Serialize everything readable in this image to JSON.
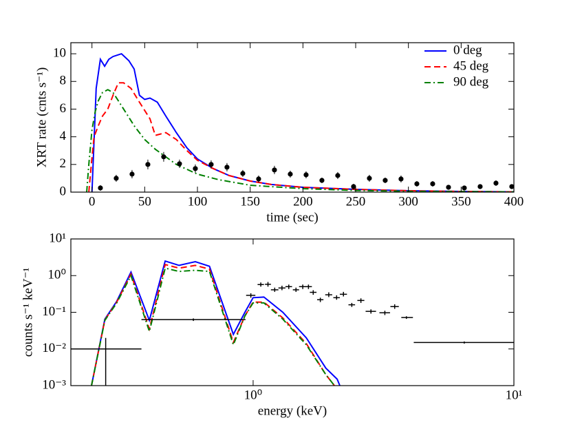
{
  "chart_data": [
    {
      "type": "line",
      "xlabel": "time (sec)",
      "ylabel": "XRT rate (cnts s⁻¹)",
      "xlim": [
        -20,
        400
      ],
      "ylim": [
        0,
        10.8
      ],
      "xticks": [
        0,
        50,
        100,
        150,
        200,
        250,
        300,
        350,
        400
      ],
      "yticks": [
        0,
        2,
        4,
        6,
        8,
        10
      ],
      "legend": "upper right",
      "series": [
        {
          "name": "0 deg",
          "color": "#0000ff",
          "dash": "solid",
          "x": [
            0,
            4,
            8,
            12,
            16,
            20,
            24,
            28,
            35,
            40,
            45,
            50,
            55,
            62,
            70,
            80,
            90,
            100,
            115,
            130,
            150,
            170,
            200,
            250,
            300,
            350,
            400
          ],
          "values": [
            0,
            7.5,
            9.6,
            9.1,
            9.6,
            9.8,
            9.9,
            10,
            9.5,
            8.9,
            7.0,
            6.7,
            6.8,
            6.5,
            5.5,
            4.3,
            3.2,
            2.4,
            1.7,
            1.2,
            0.8,
            0.55,
            0.35,
            0.2,
            0.1,
            0.05,
            0.02
          ]
        },
        {
          "name": "45 deg",
          "color": "#ff0000",
          "dash": "dashed",
          "x": [
            -3,
            0,
            2,
            6,
            10,
            15,
            20,
            25,
            30,
            37,
            45,
            55,
            60,
            65,
            70,
            80,
            90,
            100,
            115,
            130,
            150,
            170,
            200,
            250,
            300,
            350,
            400
          ],
          "values": [
            0,
            2.5,
            4.0,
            4.8,
            5.5,
            6.0,
            7.0,
            7.9,
            7.9,
            7.5,
            6.5,
            5.3,
            4.1,
            4.2,
            4.3,
            3.8,
            3.0,
            2.3,
            1.7,
            1.2,
            0.8,
            0.55,
            0.35,
            0.2,
            0.1,
            0.05,
            0.02
          ]
        },
        {
          "name": "90 deg",
          "color": "#008000",
          "dash": "dashdot",
          "x": [
            -5,
            -3,
            0,
            3,
            6,
            10,
            15,
            20,
            30,
            40,
            50,
            60,
            80,
            100,
            120,
            150,
            200,
            250,
            300,
            400
          ],
          "values": [
            0,
            2.0,
            4.5,
            5.8,
            6.6,
            7.2,
            7.4,
            7.2,
            6.0,
            4.8,
            3.8,
            3.1,
            2.0,
            1.3,
            0.9,
            0.5,
            0.25,
            0.12,
            0.06,
            0.02
          ]
        }
      ],
      "points": {
        "color": "#000000",
        "x": [
          8,
          23,
          38,
          53,
          68,
          83,
          98,
          113,
          128,
          143,
          158,
          173,
          188,
          203,
          218,
          233,
          248,
          263,
          278,
          293,
          308,
          323,
          338,
          353,
          368,
          383,
          398
        ],
        "values": [
          0.3,
          1.0,
          1.3,
          2.0,
          2.55,
          2.05,
          1.7,
          2.0,
          1.8,
          1.35,
          0.95,
          1.6,
          1.3,
          1.25,
          0.85,
          1.2,
          0.4,
          1.0,
          0.85,
          0.95,
          0.6,
          0.6,
          0.35,
          0.3,
          0.4,
          0.65,
          0.4
        ],
        "errors": [
          0.2,
          0.25,
          0.3,
          0.35,
          0.35,
          0.3,
          0.3,
          0.3,
          0.3,
          0.25,
          0.25,
          0.3,
          0.25,
          0.25,
          0.2,
          0.25,
          0.2,
          0.25,
          0.2,
          0.25,
          0.2,
          0.2,
          0.15,
          0.15,
          0.15,
          0.2,
          0.15
        ]
      }
    },
    {
      "type": "line",
      "xlabel": "energy (keV)",
      "ylabel": "counts s⁻¹ keV⁻¹",
      "xscale": "log",
      "yscale": "log",
      "xlim": [
        0.2,
        10
      ],
      "ylim": [
        0.001,
        10
      ],
      "xticks": [
        {
          "value": 1,
          "label": "10⁰"
        },
        {
          "value": 10,
          "label": "10¹"
        }
      ],
      "yticks": [
        {
          "value": 0.001,
          "label": "10⁻³"
        },
        {
          "value": 0.01,
          "label": "10⁻²"
        },
        {
          "value": 0.1,
          "label": "10⁻¹"
        },
        {
          "value": 1,
          "label": "10⁰"
        },
        {
          "value": 10,
          "label": "10¹"
        }
      ],
      "series": [
        {
          "name": "0 deg",
          "color": "#0000ff",
          "dash": "solid",
          "x": [
            0.24,
            0.27,
            0.3,
            0.34,
            0.4,
            0.46,
            0.52,
            0.6,
            0.68,
            0.84,
            0.93,
            1.0,
            1.1,
            1.3,
            1.6,
            1.9,
            2.1,
            2.15
          ],
          "values": [
            0.001,
            0.065,
            0.2,
            1.25,
            0.06,
            2.5,
            1.9,
            2.4,
            1.8,
            0.025,
            0.1,
            0.25,
            0.26,
            0.1,
            0.02,
            0.003,
            0.0015,
            0.001
          ]
        },
        {
          "name": "45 deg",
          "color": "#ff0000",
          "dash": "dashed",
          "x": [
            0.24,
            0.27,
            0.3,
            0.34,
            0.4,
            0.46,
            0.52,
            0.6,
            0.68,
            0.84,
            0.93,
            1.0,
            1.1,
            1.3,
            1.6,
            1.9,
            2.05
          ],
          "values": [
            0.001,
            0.062,
            0.19,
            1.1,
            0.035,
            2.0,
            1.6,
            1.9,
            1.5,
            0.015,
            0.08,
            0.19,
            0.19,
            0.07,
            0.014,
            0.002,
            0.001
          ]
        },
        {
          "name": "90 deg",
          "color": "#008000",
          "dash": "dashdot",
          "x": [
            0.24,
            0.27,
            0.3,
            0.34,
            0.4,
            0.46,
            0.52,
            0.6,
            0.68,
            0.84,
            0.93,
            1.0,
            1.1,
            1.3,
            1.6,
            1.9,
            2.05
          ],
          "values": [
            0.001,
            0.06,
            0.18,
            1.0,
            0.03,
            1.6,
            1.3,
            1.4,
            1.3,
            0.013,
            0.08,
            0.18,
            0.18,
            0.065,
            0.013,
            0.002,
            0.001
          ]
        }
      ],
      "crosses": {
        "color": "#000000",
        "x": [
          0.272,
          0.59,
          0.98,
          1.07,
          1.14,
          1.21,
          1.29,
          1.37,
          1.46,
          1.55,
          1.63,
          1.7,
          1.81,
          1.95,
          2.09,
          2.22,
          2.39,
          2.59,
          2.83,
          3.2,
          3.49,
          3.87,
          6.45
        ],
        "x_lo": [
          0.2,
          0.373,
          0.94,
          1.04,
          1.11,
          1.17,
          1.25,
          1.33,
          1.42,
          1.5,
          1.58,
          1.65,
          1.76,
          1.89,
          2.03,
          2.15,
          2.32,
          2.51,
          2.7,
          3.05,
          3.36,
          3.7,
          4.13
        ],
        "x_hi": [
          0.373,
          0.935,
          1.02,
          1.1,
          1.17,
          1.25,
          1.33,
          1.41,
          1.5,
          1.6,
          1.68,
          1.75,
          1.86,
          2.01,
          2.15,
          2.29,
          2.46,
          2.67,
          2.96,
          3.35,
          3.62,
          4.1,
          10
        ],
        "values": [
          0.01,
          0.063,
          0.29,
          0.57,
          0.58,
          0.41,
          0.46,
          0.5,
          0.41,
          0.5,
          0.5,
          0.35,
          0.22,
          0.3,
          0.25,
          0.31,
          0.16,
          0.21,
          0.106,
          0.097,
          0.143,
          0.072,
          0.015
        ],
        "y_lo": [
          0.001,
          0.058,
          0.25,
          0.5,
          0.5,
          0.36,
          0.4,
          0.43,
          0.36,
          0.43,
          0.43,
          0.3,
          0.19,
          0.26,
          0.22,
          0.27,
          0.14,
          0.18,
          0.092,
          0.084,
          0.124,
          0.066,
          0.014
        ],
        "y_hi": [
          0.02,
          0.068,
          0.33,
          0.65,
          0.67,
          0.47,
          0.53,
          0.57,
          0.47,
          0.57,
          0.57,
          0.4,
          0.25,
          0.35,
          0.29,
          0.36,
          0.18,
          0.24,
          0.12,
          0.11,
          0.165,
          0.078,
          0.016
        ]
      }
    }
  ]
}
